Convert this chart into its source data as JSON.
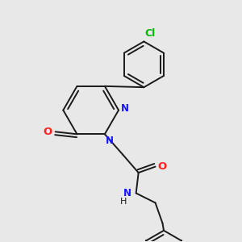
{
  "background_color": "#e8e8e8",
  "bond_color": "#1a1a1a",
  "N_color": "#1414ff",
  "O_color": "#ff2020",
  "Cl_color": "#00bb00",
  "bond_width": 1.4,
  "dbo": 0.012,
  "fig_width": 3.0,
  "fig_height": 3.0,
  "dpi": 100,
  "xlim": [
    0.0,
    1.0
  ],
  "ylim": [
    0.0,
    1.0
  ]
}
